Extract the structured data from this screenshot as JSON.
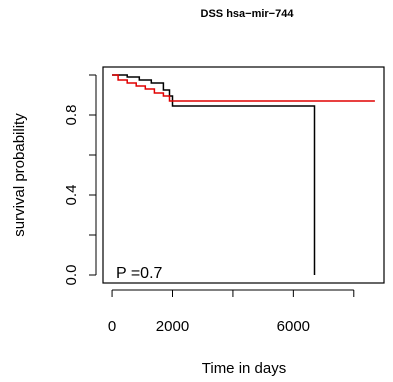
{
  "chart_data": {
    "type": "line",
    "title": "DSS hsa−mir−744",
    "xlabel": "Time in days",
    "ylabel": "survival probability",
    "xlim": [
      -300,
      9000
    ],
    "ylim": [
      -0.04,
      1.04
    ],
    "x_ticks": [
      0,
      2000,
      4000,
      6000,
      8000
    ],
    "x_tick_labels": [
      "0",
      "2000",
      "",
      "6000",
      ""
    ],
    "y_ticks": [
      0.0,
      0.2,
      0.4,
      0.6,
      0.8,
      1.0
    ],
    "y_tick_labels": [
      "0.0",
      "",
      "0.4",
      "",
      "0.8",
      ""
    ],
    "annotation": "P =0.7",
    "grid": false,
    "series": [
      {
        "color": "#000000",
        "steps": [
          [
            0,
            1.0
          ],
          [
            500,
            0.99
          ],
          [
            900,
            0.975
          ],
          [
            1300,
            0.96
          ],
          [
            1700,
            0.925
          ],
          [
            1900,
            0.895
          ],
          [
            2000,
            0.845
          ],
          [
            6700,
            0.845
          ],
          [
            6700,
            0.0
          ]
        ]
      },
      {
        "color": "#e00000",
        "steps": [
          [
            0,
            1.0
          ],
          [
            200,
            0.975
          ],
          [
            500,
            0.96
          ],
          [
            800,
            0.945
          ],
          [
            1100,
            0.93
          ],
          [
            1400,
            0.91
          ],
          [
            1700,
            0.895
          ],
          [
            1900,
            0.87
          ],
          [
            8700,
            0.87
          ]
        ]
      }
    ]
  }
}
